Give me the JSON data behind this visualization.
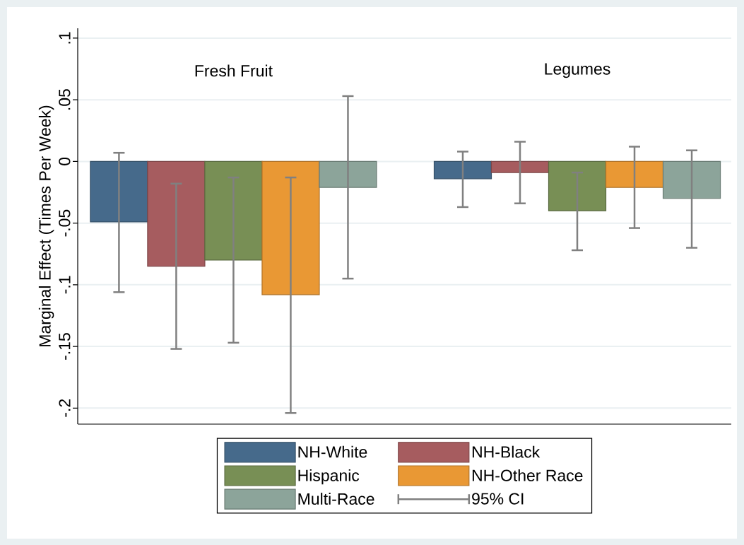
{
  "chart_data": {
    "type": "bar",
    "ylabel": "Marginal Effect (Times Per Week)",
    "categories": [
      "Fresh Fruit",
      "Legumes"
    ],
    "series": [
      {
        "name": "NH-White",
        "color": "#466a8b",
        "values": [
          -0.049,
          -0.014
        ],
        "errors": [
          [
            -0.106,
            0.007
          ],
          [
            -0.037,
            0.008
          ]
        ]
      },
      {
        "name": "NH-Black",
        "color": "#a65c5f",
        "values": [
          -0.085,
          -0.009
        ],
        "errors": [
          [
            -0.152,
            -0.018
          ],
          [
            -0.034,
            0.016
          ]
        ]
      },
      {
        "name": "Hispanic",
        "color": "#788f55",
        "values": [
          -0.08,
          -0.04
        ],
        "errors": [
          [
            -0.147,
            -0.013
          ],
          [
            -0.072,
            -0.009
          ]
        ]
      },
      {
        "name": "NH-Other Race",
        "color": "#e99834",
        "values": [
          -0.108,
          -0.021
        ],
        "errors": [
          [
            -0.204,
            -0.013
          ],
          [
            -0.054,
            0.012
          ]
        ]
      },
      {
        "name": "Multi-Race",
        "color": "#8ca49a",
        "values": [
          -0.021,
          -0.03
        ],
        "errors": [
          [
            -0.095,
            0.053
          ],
          [
            -0.07,
            0.009
          ]
        ]
      }
    ],
    "ylim": [
      -0.213,
      0.108
    ],
    "yticks": [
      {
        "value": -0.2,
        "label": "-.2"
      },
      {
        "value": -0.15,
        "label": "-.15"
      },
      {
        "value": -0.1,
        "label": "-.1"
      },
      {
        "value": -0.05,
        "label": "-.05"
      },
      {
        "value": 0,
        "label": "0"
      },
      {
        "value": 0.05,
        "label": ".05"
      },
      {
        "value": 0.1,
        "label": ".1"
      }
    ],
    "grid": "y",
    "legend": "bottom",
    "annotations": [
      "95% CI"
    ]
  }
}
